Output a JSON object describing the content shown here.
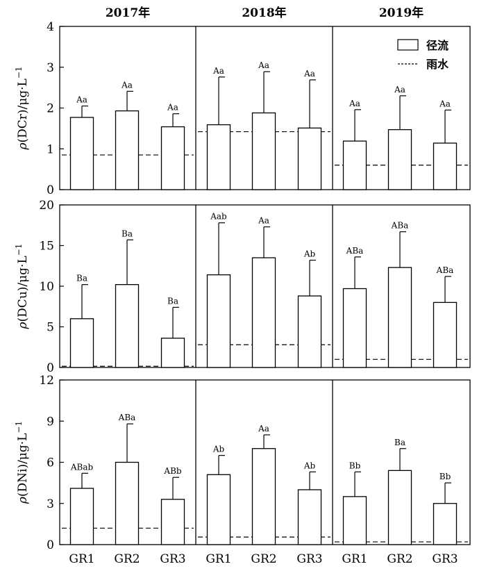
{
  "chart_data": {
    "type": "bar",
    "years": [
      "2017年",
      "2018年",
      "2019年"
    ],
    "categories": [
      "GR1",
      "GR2",
      "GR3"
    ],
    "legend": {
      "bar": "径流",
      "dashed": "雨水",
      "placement": "top-right"
    },
    "panels": [
      {
        "ylabel_parts": [
          "ρ",
          "(DCr)/μg·L",
          "−1"
        ],
        "ylim": [
          0,
          4
        ],
        "ticks": [
          0,
          1,
          2,
          3,
          4
        ],
        "groups": [
          {
            "values": [
              1.77,
              1.93,
              1.54
            ],
            "errors": [
              0.28,
              0.48,
              0.32
            ],
            "labels": [
              "Aa",
              "Aa",
              "Aa"
            ],
            "rain": 0.85
          },
          {
            "values": [
              1.59,
              1.88,
              1.51
            ],
            "errors": [
              1.17,
              1.01,
              1.18
            ],
            "labels": [
              "Aa",
              "Aa",
              "Aa"
            ],
            "rain": 1.42
          },
          {
            "values": [
              1.19,
              1.47,
              1.14
            ],
            "errors": [
              0.77,
              0.83,
              0.81
            ],
            "labels": [
              "Aa",
              "Aa",
              "Aa"
            ],
            "rain": 0.6
          }
        ]
      },
      {
        "ylabel_parts": [
          "ρ",
          "(DCu)/μg·L",
          "−1"
        ],
        "ylim": [
          0,
          20
        ],
        "ticks": [
          0,
          5,
          10,
          15,
          20
        ],
        "groups": [
          {
            "values": [
              6.0,
              10.2,
              3.6
            ],
            "errors": [
              4.2,
              5.5,
              3.8
            ],
            "labels": [
              "Ba",
              "Ba",
              "Ba"
            ],
            "rain": 0.15
          },
          {
            "values": [
              11.4,
              13.5,
              8.8
            ],
            "errors": [
              6.4,
              3.8,
              4.4
            ],
            "labels": [
              "Aab",
              "Aa",
              "Ab"
            ],
            "rain": 2.8
          },
          {
            "values": [
              9.7,
              12.3,
              8.0
            ],
            "errors": [
              3.9,
              4.4,
              3.2
            ],
            "labels": [
              "ABa",
              "ABa",
              "ABa"
            ],
            "rain": 1.0
          }
        ]
      },
      {
        "ylabel_parts": [
          "ρ",
          "(DNi)/μg·L",
          "−1"
        ],
        "ylim": [
          0,
          12
        ],
        "ticks": [
          0,
          3,
          6,
          9,
          12
        ],
        "groups": [
          {
            "values": [
              4.1,
              6.0,
              3.3
            ],
            "errors": [
              1.1,
              2.8,
              1.6
            ],
            "labels": [
              "ABab",
              "ABa",
              "ABb"
            ],
            "rain": 1.2
          },
          {
            "values": [
              5.1,
              7.0,
              4.0
            ],
            "errors": [
              1.4,
              1.0,
              1.3
            ],
            "labels": [
              "Ab",
              "Aa",
              "Ab"
            ],
            "rain": 0.55
          },
          {
            "values": [
              3.5,
              5.4,
              3.0
            ],
            "errors": [
              1.8,
              1.6,
              1.5
            ],
            "labels": [
              "Bb",
              "Ba",
              "Bb"
            ],
            "rain": 0.2
          }
        ]
      }
    ]
  }
}
